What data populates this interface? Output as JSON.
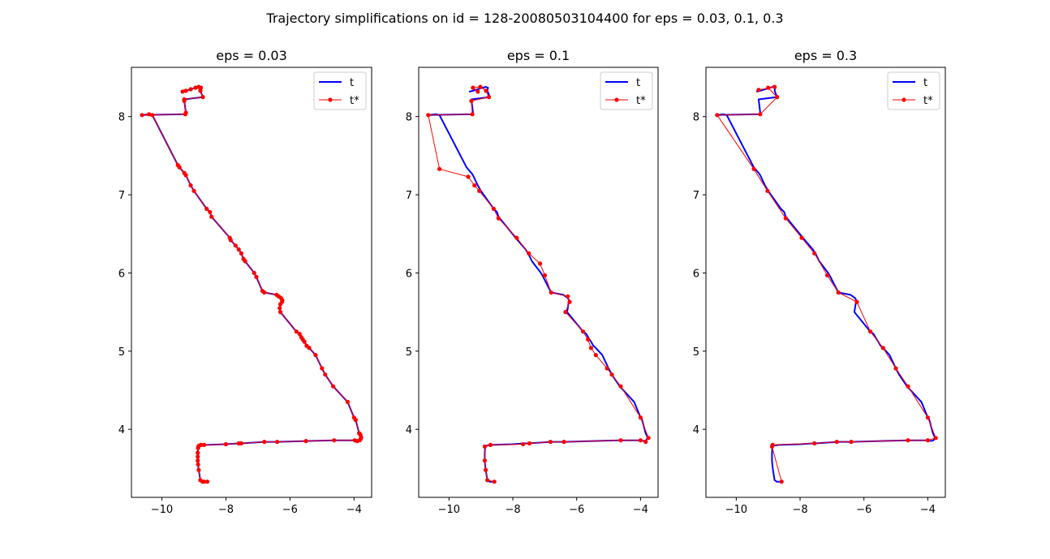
{
  "figure": {
    "suptitle": "Trajectory simplifications on id = 128-20080503104400 for eps = 0.03, 0.1, 0.3"
  },
  "colors": {
    "t": "#0000ff",
    "tstar": "#ff0000"
  },
  "chart_data": [
    {
      "type": "line",
      "title": "eps = 0.03",
      "xlim": [
        -10.95,
        -3.45
      ],
      "ylim": [
        3.13,
        8.63
      ],
      "xticks": [
        -10,
        -8,
        -6,
        -4
      ],
      "yticks": [
        4,
        5,
        6,
        7,
        8
      ],
      "xtick_labels": [
        "−10",
        "−8",
        "−6",
        "−4"
      ],
      "ytick_labels": [
        "4",
        "5",
        "6",
        "7",
        "8"
      ],
      "legend": {
        "position": "top-right",
        "entries": [
          "t",
          "t*"
        ]
      },
      "series": [
        {
          "name": "t",
          "style": "line",
          "color": "#0000ff",
          "x": [
            -8.58,
            -8.68,
            -8.73,
            -8.8,
            -8.85,
            -8.87,
            -8.88,
            -8.88,
            -8.88,
            -8.87,
            -8.86,
            -8.84,
            -8.78,
            -8.68,
            -8.0,
            -7.6,
            -7.52,
            -6.8,
            -6.4,
            -5.5,
            -4.62,
            -3.98,
            -3.9,
            -3.82,
            -3.79,
            -3.78,
            -3.8,
            -3.84,
            -3.95,
            -4.0,
            -4.2,
            -4.65,
            -4.9,
            -5.0,
            -5.2,
            -5.4,
            -5.48,
            -5.55,
            -5.6,
            -5.65,
            -5.7,
            -5.8,
            -6.3,
            -6.32,
            -6.3,
            -6.25,
            -6.24,
            -6.28,
            -6.35,
            -6.42,
            -6.8,
            -6.86,
            -7.05,
            -7.12,
            -7.4,
            -7.45,
            -7.52,
            -7.6,
            -7.7,
            -7.85,
            -7.88,
            -8.45,
            -8.5,
            -8.6,
            -9.0,
            -9.1,
            -9.25,
            -9.3,
            -9.45,
            -9.5,
            -10.3,
            -10.4,
            -10.62,
            -9.27,
            -9.25,
            -9.3,
            -9.3,
            -8.72,
            -8.8,
            -8.78,
            -8.85,
            -8.95,
            -9.1,
            -9.25,
            -9.35
          ],
          "y": [
            3.33,
            3.33,
            3.33,
            3.35,
            3.48,
            3.55,
            3.6,
            3.65,
            3.7,
            3.76,
            3.78,
            3.79,
            3.8,
            3.8,
            3.81,
            3.82,
            3.82,
            3.84,
            3.84,
            3.85,
            3.86,
            3.86,
            3.85,
            3.86,
            3.88,
            3.9,
            3.93,
            3.95,
            4.12,
            4.15,
            4.35,
            4.55,
            4.7,
            4.78,
            4.95,
            5.04,
            5.07,
            5.12,
            5.15,
            5.18,
            5.22,
            5.25,
            5.5,
            5.55,
            5.6,
            5.63,
            5.65,
            5.68,
            5.7,
            5.72,
            5.75,
            5.77,
            5.95,
            6.0,
            6.15,
            6.18,
            6.25,
            6.3,
            6.35,
            6.42,
            6.45,
            6.72,
            6.78,
            6.82,
            7.05,
            7.12,
            7.25,
            7.28,
            7.35,
            7.38,
            8.02,
            8.03,
            8.02,
            8.03,
            8.05,
            8.2,
            8.22,
            8.25,
            8.33,
            8.37,
            8.38,
            8.37,
            8.35,
            8.33,
            8.32
          ]
        },
        {
          "name": "t*",
          "style": "line-markers",
          "color": "#ff0000",
          "x": [
            -8.58,
            -8.68,
            -8.73,
            -8.8,
            -8.85,
            -8.87,
            -8.88,
            -8.88,
            -8.88,
            -8.87,
            -8.86,
            -8.84,
            -8.78,
            -8.68,
            -8.0,
            -7.6,
            -7.52,
            -6.8,
            -6.4,
            -5.5,
            -4.62,
            -3.98,
            -3.9,
            -3.82,
            -3.79,
            -3.78,
            -3.8,
            -3.84,
            -3.95,
            -4.0,
            -4.2,
            -4.65,
            -4.9,
            -5.0,
            -5.2,
            -5.4,
            -5.48,
            -5.55,
            -5.6,
            -5.65,
            -5.7,
            -5.8,
            -6.3,
            -6.32,
            -6.3,
            -6.25,
            -6.24,
            -6.28,
            -6.35,
            -6.42,
            -6.8,
            -6.86,
            -7.05,
            -7.12,
            -7.4,
            -7.45,
            -7.52,
            -7.6,
            -7.7,
            -7.85,
            -7.88,
            -8.45,
            -8.5,
            -8.6,
            -9.0,
            -9.1,
            -9.25,
            -9.3,
            -9.45,
            -9.5,
            -10.3,
            -10.4,
            -10.62,
            -9.27,
            -9.25,
            -9.3,
            -9.3,
            -8.72,
            -8.8,
            -8.78,
            -8.85,
            -8.95,
            -9.1,
            -9.25,
            -9.35
          ],
          "y": [
            3.33,
            3.33,
            3.33,
            3.35,
            3.48,
            3.55,
            3.6,
            3.65,
            3.7,
            3.76,
            3.78,
            3.79,
            3.8,
            3.8,
            3.81,
            3.82,
            3.82,
            3.84,
            3.84,
            3.85,
            3.86,
            3.86,
            3.85,
            3.86,
            3.88,
            3.9,
            3.93,
            3.95,
            4.12,
            4.15,
            4.35,
            4.55,
            4.7,
            4.78,
            4.95,
            5.04,
            5.07,
            5.12,
            5.15,
            5.18,
            5.22,
            5.25,
            5.5,
            5.55,
            5.6,
            5.63,
            5.65,
            5.68,
            5.7,
            5.72,
            5.75,
            5.77,
            5.95,
            6.0,
            6.15,
            6.18,
            6.25,
            6.3,
            6.35,
            6.42,
            6.45,
            6.72,
            6.78,
            6.82,
            7.05,
            7.12,
            7.25,
            7.28,
            7.35,
            7.38,
            8.02,
            8.03,
            8.02,
            8.03,
            8.05,
            8.2,
            8.22,
            8.25,
            8.33,
            8.37,
            8.38,
            8.37,
            8.35,
            8.33,
            8.32
          ]
        }
      ]
    },
    {
      "type": "line",
      "title": "eps = 0.1",
      "xlim": [
        -10.95,
        -3.45
      ],
      "ylim": [
        3.13,
        8.63
      ],
      "xticks": [
        -10,
        -8,
        -6,
        -4
      ],
      "yticks": [
        4,
        5,
        6,
        7,
        8
      ],
      "xtick_labels": [
        "−10",
        "−8",
        "−6",
        "−4"
      ],
      "ytick_labels": [
        "4",
        "5",
        "6",
        "7",
        "8"
      ],
      "legend": {
        "position": "top-right",
        "entries": [
          "t",
          "t*"
        ]
      },
      "series": [
        {
          "name": "t",
          "style": "line",
          "color": "#0000ff",
          "x": [
            -8.58,
            -8.73,
            -8.8,
            -8.85,
            -8.87,
            -8.88,
            -8.88,
            -8.87,
            -8.84,
            -8.68,
            -8.0,
            -7.6,
            -7.52,
            -6.8,
            -6.4,
            -5.5,
            -4.62,
            -3.98,
            -3.9,
            -3.82,
            -3.79,
            -3.78,
            -3.84,
            -3.95,
            -4.0,
            -4.2,
            -4.65,
            -4.9,
            -5.0,
            -5.2,
            -5.4,
            -5.48,
            -5.55,
            -5.6,
            -5.7,
            -5.8,
            -6.3,
            -6.25,
            -6.24,
            -6.28,
            -6.35,
            -6.42,
            -6.8,
            -7.05,
            -7.12,
            -7.4,
            -7.52,
            -7.6,
            -7.85,
            -8.45,
            -8.5,
            -8.6,
            -9.0,
            -9.1,
            -9.25,
            -9.3,
            -9.45,
            -10.3,
            -10.4,
            -10.62,
            -9.27,
            -9.25,
            -9.3,
            -8.72,
            -8.8,
            -8.78,
            -8.85,
            -8.95,
            -9.1,
            -9.25,
            -9.35
          ],
          "y": [
            3.33,
            3.33,
            3.35,
            3.48,
            3.55,
            3.6,
            3.7,
            3.76,
            3.79,
            3.8,
            3.81,
            3.82,
            3.82,
            3.84,
            3.84,
            3.85,
            3.86,
            3.86,
            3.85,
            3.86,
            3.88,
            3.9,
            3.95,
            4.12,
            4.15,
            4.35,
            4.55,
            4.7,
            4.78,
            4.95,
            5.04,
            5.07,
            5.12,
            5.15,
            5.22,
            5.25,
            5.5,
            5.63,
            5.65,
            5.68,
            5.7,
            5.72,
            5.75,
            5.95,
            6.0,
            6.15,
            6.25,
            6.3,
            6.42,
            6.72,
            6.78,
            6.82,
            7.05,
            7.12,
            7.25,
            7.28,
            7.35,
            8.02,
            8.03,
            8.02,
            8.03,
            8.05,
            8.22,
            8.25,
            8.33,
            8.37,
            8.38,
            8.37,
            8.35,
            8.33,
            8.32
          ]
        },
        {
          "name": "t*",
          "style": "line-markers",
          "color": "#ff0000",
          "x": [
            -8.58,
            -8.8,
            -8.85,
            -8.88,
            -8.88,
            -8.7,
            -7.68,
            -7.48,
            -6.82,
            -6.4,
            -4.62,
            -4.0,
            -3.84,
            -3.75,
            -4.0,
            -4.62,
            -4.9,
            -5.05,
            -5.4,
            -5.55,
            -5.65,
            -5.8,
            -6.35,
            -6.22,
            -6.28,
            -6.8,
            -7.0,
            -7.15,
            -7.5,
            -7.88,
            -8.45,
            -8.6,
            -9.05,
            -9.2,
            -9.4,
            -10.3,
            -10.65,
            -9.27,
            -9.3,
            -8.75,
            -8.84,
            -9.02,
            -9.25,
            -9.1
          ],
          "y": [
            3.33,
            3.35,
            3.48,
            3.6,
            3.78,
            3.8,
            3.81,
            3.82,
            3.84,
            3.84,
            3.86,
            3.86,
            3.84,
            3.89,
            4.15,
            4.55,
            4.7,
            4.78,
            4.95,
            5.04,
            5.15,
            5.25,
            5.5,
            5.63,
            5.7,
            5.75,
            5.97,
            6.12,
            6.25,
            6.45,
            6.7,
            6.82,
            7.05,
            7.12,
            7.23,
            7.33,
            8.02,
            8.03,
            8.2,
            8.25,
            8.33,
            8.38,
            8.37,
            8.32
          ]
        }
      ]
    },
    {
      "type": "line",
      "title": "eps = 0.3",
      "xlim": [
        -10.95,
        -3.45
      ],
      "ylim": [
        3.13,
        8.63
      ],
      "xticks": [
        -10,
        -8,
        -6,
        -4
      ],
      "yticks": [
        4,
        5,
        6,
        7,
        8
      ],
      "xtick_labels": [
        "−10",
        "−8",
        "−6",
        "−4"
      ],
      "ytick_labels": [
        "4",
        "5",
        "6",
        "7",
        "8"
      ],
      "legend": {
        "position": "top-right",
        "entries": [
          "t",
          "t*"
        ]
      },
      "series": [
        {
          "name": "t",
          "style": "line",
          "color": "#0000ff",
          "x": [
            -8.58,
            -8.73,
            -8.8,
            -8.85,
            -8.87,
            -8.88,
            -8.88,
            -8.87,
            -8.84,
            -8.68,
            -8.0,
            -7.6,
            -7.52,
            -6.8,
            -6.4,
            -5.5,
            -4.62,
            -3.98,
            -3.9,
            -3.82,
            -3.79,
            -3.78,
            -3.84,
            -3.95,
            -4.0,
            -4.2,
            -4.65,
            -4.9,
            -5.0,
            -5.2,
            -5.4,
            -5.48,
            -5.55,
            -5.6,
            -5.7,
            -5.8,
            -6.3,
            -6.25,
            -6.24,
            -6.28,
            -6.35,
            -6.42,
            -6.8,
            -7.05,
            -7.12,
            -7.4,
            -7.52,
            -7.6,
            -7.85,
            -8.45,
            -8.5,
            -8.6,
            -9.0,
            -9.1,
            -9.25,
            -9.3,
            -9.45,
            -10.3,
            -10.4,
            -10.62,
            -9.27,
            -9.25,
            -9.3,
            -8.72,
            -8.8,
            -8.78,
            -8.85,
            -8.95,
            -9.1,
            -9.25,
            -9.35
          ],
          "y": [
            3.33,
            3.33,
            3.35,
            3.48,
            3.55,
            3.6,
            3.7,
            3.76,
            3.79,
            3.8,
            3.81,
            3.82,
            3.82,
            3.84,
            3.84,
            3.85,
            3.86,
            3.86,
            3.85,
            3.86,
            3.88,
            3.9,
            3.95,
            4.12,
            4.15,
            4.35,
            4.55,
            4.7,
            4.78,
            4.95,
            5.04,
            5.07,
            5.12,
            5.15,
            5.22,
            5.25,
            5.5,
            5.63,
            5.65,
            5.68,
            5.7,
            5.72,
            5.75,
            5.95,
            6.0,
            6.15,
            6.25,
            6.3,
            6.42,
            6.72,
            6.78,
            6.82,
            7.05,
            7.12,
            7.25,
            7.28,
            7.35,
            8.02,
            8.03,
            8.02,
            8.03,
            8.05,
            8.22,
            8.25,
            8.33,
            8.37,
            8.38,
            8.37,
            8.35,
            8.33,
            8.32
          ]
        },
        {
          "name": "t*",
          "style": "line-markers",
          "color": "#ff0000",
          "x": [
            -8.58,
            -8.88,
            -8.86,
            -7.55,
            -6.85,
            -6.4,
            -4.62,
            -4.0,
            -3.75,
            -4.0,
            -4.62,
            -5.0,
            -5.4,
            -5.8,
            -6.22,
            -6.8,
            -7.15,
            -7.55,
            -7.95,
            -8.45,
            -9.02,
            -9.45,
            -10.6,
            -9.25,
            -8.72,
            -9.0,
            -8.8,
            -9.3
          ],
          "y": [
            3.33,
            3.78,
            3.8,
            3.82,
            3.84,
            3.84,
            3.86,
            3.86,
            3.89,
            4.15,
            4.55,
            4.78,
            5.04,
            5.25,
            5.63,
            5.75,
            5.97,
            6.25,
            6.45,
            6.7,
            7.05,
            7.33,
            8.02,
            8.03,
            8.25,
            8.37,
            8.38,
            8.34
          ]
        }
      ]
    }
  ]
}
